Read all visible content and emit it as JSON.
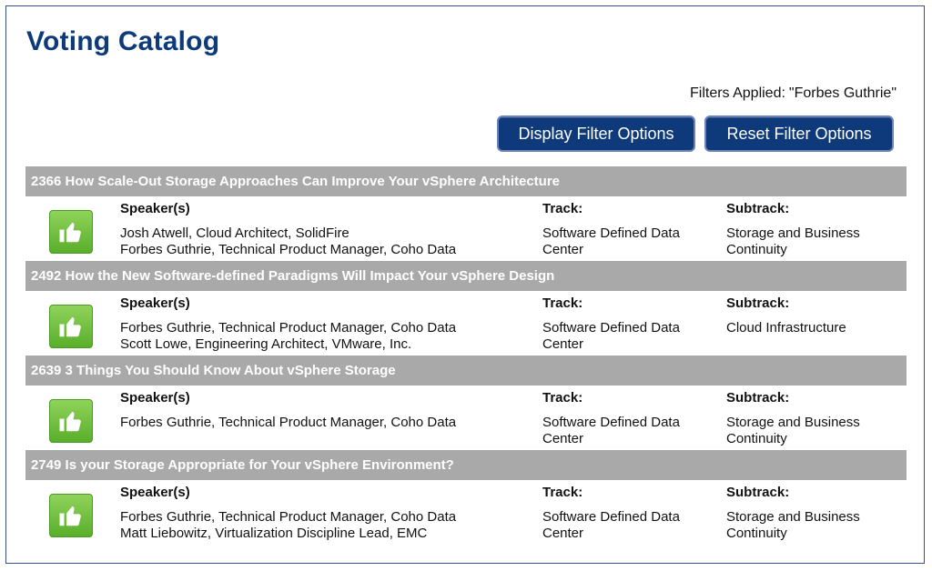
{
  "page": {
    "title": "Voting Catalog",
    "filters_label": "Filters Applied:",
    "filters_value": "\"Forbes Guthrie\""
  },
  "buttons": {
    "display_filter": "Display Filter Options",
    "reset_filter": "Reset Filter Options"
  },
  "labels": {
    "speakers": "Speaker(s)",
    "track": "Track:",
    "subtrack": "Subtrack:"
  },
  "icons": {
    "vote": "thumbs-up-icon"
  },
  "colors": {
    "title": "#0d3a7a",
    "button_bg": "#0e3a7c",
    "header_bg": "#a9a9a9",
    "vote_green": "#5aae2b"
  },
  "sessions": [
    {
      "id": "2366",
      "title": "How Scale-Out Storage Approaches Can Improve Your vSphere Architecture",
      "speakers": [
        "Josh Atwell, Cloud Architect, SolidFire",
        "Forbes Guthrie, Technical Product Manager, Coho Data"
      ],
      "track": [
        "Software Defined Data",
        "Center"
      ],
      "subtrack": [
        "Storage and Business",
        "Continuity"
      ]
    },
    {
      "id": "2492",
      "title": "How the New Software-defined Paradigms Will Impact Your vSphere Design",
      "speakers": [
        "Forbes Guthrie, Technical Product Manager, Coho Data",
        "Scott Lowe, Engineering Architect, VMware, Inc."
      ],
      "track": [
        "Software Defined Data",
        "Center"
      ],
      "subtrack": [
        "Cloud Infrastructure",
        ""
      ]
    },
    {
      "id": "2639",
      "title": "3 Things You Should Know About vSphere Storage",
      "speakers": [
        "Forbes Guthrie, Technical Product Manager, Coho Data",
        ""
      ],
      "track": [
        "Software Defined Data",
        "Center"
      ],
      "subtrack": [
        "Storage and Business",
        "Continuity"
      ]
    },
    {
      "id": "2749",
      "title": "Is your Storage Appropriate for Your vSphere Environment?",
      "speakers": [
        "Forbes Guthrie, Technical Product Manager, Coho Data",
        "Matt Liebowitz, Virtualization Discipline Lead, EMC"
      ],
      "track": [
        "Software Defined Data",
        "Center"
      ],
      "subtrack": [
        "Storage and Business",
        "Continuity"
      ]
    }
  ]
}
